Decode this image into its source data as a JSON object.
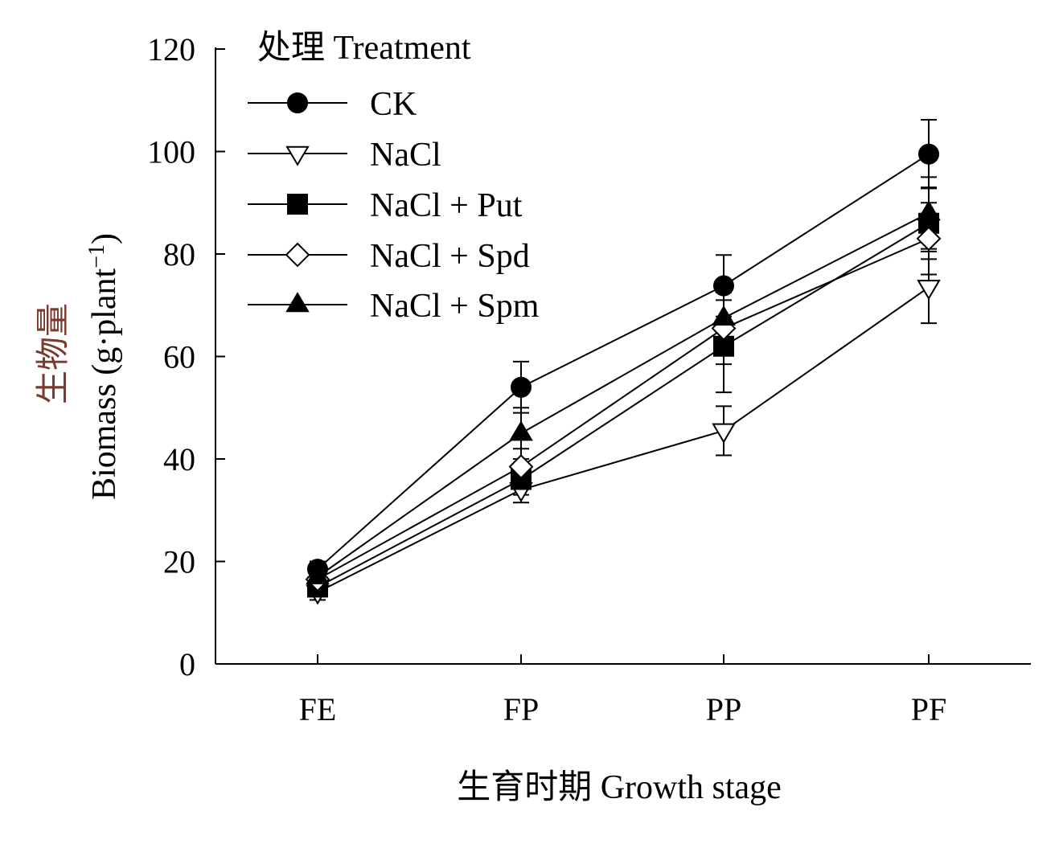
{
  "chart_data": {
    "type": "line",
    "title": "",
    "xlabel": "生育时期 Growth stage",
    "ylabel_cn": "生物量",
    "ylabel": "Biomass (g·plant",
    "ylabel_exp": "−1",
    "ylabel_close": ")",
    "categories": [
      "FE",
      "FP",
      "PP",
      "PF"
    ],
    "ylim": [
      0,
      120
    ],
    "yticks": [
      0,
      20,
      40,
      60,
      80,
      100,
      120
    ],
    "grid": false,
    "legend_title": "处理 Treatment",
    "legend_position": "top-left",
    "series": [
      {
        "name": "CK",
        "marker": "circle-filled",
        "values": [
          18.5,
          54,
          73.8,
          99.5
        ],
        "errors": [
          1.5,
          5,
          6,
          6.7
        ]
      },
      {
        "name": "NaCl",
        "marker": "triangle-down-open",
        "values": [
          14,
          34,
          45.5,
          73.5
        ],
        "errors": [
          1.5,
          2.5,
          4.8,
          7
        ]
      },
      {
        "name": "NaCl + Put",
        "marker": "square-filled",
        "values": [
          15,
          36,
          62,
          86
        ],
        "errors": [
          1.5,
          3,
          9,
          7
        ]
      },
      {
        "name": "NaCl + Spd",
        "marker": "diamond-open",
        "values": [
          16.5,
          38.5,
          65.5,
          83
        ],
        "errors": [
          1.5,
          3.5,
          7,
          7
        ]
      },
      {
        "name": "NaCl + Spm",
        "marker": "triangle-up-filled",
        "values": [
          17,
          45,
          67.5,
          88
        ],
        "errors": [
          1.5,
          5,
          7,
          7
        ]
      }
    ]
  }
}
